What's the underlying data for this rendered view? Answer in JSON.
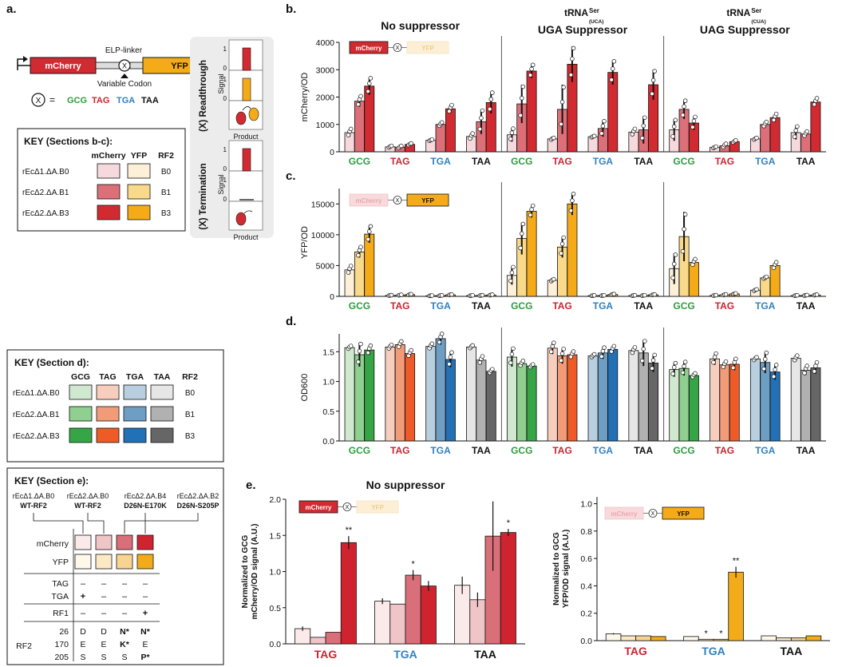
{
  "colors": {
    "mc": [
      "#f6d9dd",
      "#dc6f78",
      "#d22a31"
    ],
    "yf": [
      "#fdf0d8",
      "#f9d98a",
      "#f5ab18"
    ],
    "od": {
      "GCG": [
        "#cfe8cf",
        "#8fcf8f",
        "#36a546"
      ],
      "TAG": [
        "#f7cebd",
        "#f29b79",
        "#ee5b26"
      ],
      "TGA": [
        "#b8cfe0",
        "#6e9ec4",
        "#2270b5"
      ],
      "TAA": [
        "#e6e6e6",
        "#b1b1b1",
        "#666666"
      ]
    },
    "e_mc": [
      "#fbeaea",
      "#efc5c8",
      "#d96f78",
      "#cf2430"
    ],
    "e_yf": [
      "#fef8ea",
      "#fbe9c3",
      "#f8d493",
      "#f3ab1a"
    ],
    "codon": {
      "GCG": "#2a9d3a",
      "TAG": "#c9242f",
      "TGA": "#2f80c0",
      "TAA": "#111111"
    }
  },
  "labels": {
    "a": "a.",
    "b": "b.",
    "c": "c.",
    "d": "d.",
    "e": "e.",
    "elp_linker": "ELP-linker",
    "variable_codon": "Variable Codon",
    "mcherry": "mCherry",
    "yfp": "YFP",
    "x": "X",
    "eq": "=",
    "codons": [
      "GCG",
      "TAG",
      "TGA",
      "TAA"
    ],
    "readthrough": "(X) Readthrough",
    "termination": "(X) Termination",
    "signal": "Signal",
    "product": "Product",
    "one": "1",
    "zero": "0"
  },
  "key_bc": {
    "title": "KEY (Sections b-c):",
    "cols": [
      "mCherry",
      "YFP",
      "RF2"
    ],
    "rows": [
      {
        "strain": "rEcΔ1.ΔA.B0",
        "rf2": "B0"
      },
      {
        "strain": "rEcΔ2.ΔA.B1",
        "rf2": "B1"
      },
      {
        "strain": "rEcΔ2.ΔA.B3",
        "rf2": "B3"
      }
    ]
  },
  "key_d": {
    "title": "KEY (Section d):",
    "cols": [
      "GCG",
      "TAG",
      "TGA",
      "TAA",
      "RF2"
    ],
    "rows": [
      {
        "strain": "rEcΔ1.ΔA.B0",
        "rf2": "B0"
      },
      {
        "strain": "rEcΔ2.ΔA.B1",
        "rf2": "B1"
      },
      {
        "strain": "rEcΔ2.ΔA.B3",
        "rf2": "B3"
      }
    ]
  },
  "key_e": {
    "title": "KEY (Section e):",
    "strains": [
      [
        "rEcΔ1.ΔA.B0",
        "WT-RF2"
      ],
      [
        "rEcΔ2.ΔA.B0",
        "WT-RF2"
      ],
      [
        "rEcΔ2.ΔA.B4",
        "D26N-E170K"
      ],
      [
        "rEcΔ2.ΔA.B2",
        "D26N-S205P"
      ]
    ],
    "row_mc": "mCherry",
    "row_yf": "YFP",
    "tag": "TAG",
    "tga": "TGA",
    "rf1": "RF1",
    "rf2": "RF2",
    "tag_vals": [
      "–",
      "–",
      "–",
      "–"
    ],
    "tga_vals": [
      "+",
      "–",
      "–",
      "–"
    ],
    "rf1_vals": [
      "–",
      "–",
      "–",
      "+"
    ],
    "pos": [
      "26",
      "170",
      "205"
    ],
    "res": [
      [
        "D",
        "D",
        "N*",
        "N*"
      ],
      [
        "E",
        "E",
        "K*",
        "E"
      ],
      [
        "S",
        "S",
        "S",
        "P*"
      ]
    ]
  },
  "chart_data": [
    {
      "type": "bar",
      "id": "b",
      "ylabel": "mCherry/OD",
      "ylim": [
        0,
        4000
      ],
      "yticks": [
        0,
        1000,
        2000,
        3000,
        4000
      ],
      "groups": [
        {
          "title": "No suppressor"
        },
        {
          "title": "tRNA",
          "sup": "Ser",
          "sub": "(UCA)",
          "title2": "UGA Suppressor"
        },
        {
          "title": "tRNA",
          "sup": "Ser",
          "sub": "(CUA)",
          "title2": "UAG Suppressor"
        }
      ],
      "categories": [
        "GCG",
        "TAG",
        "TGA",
        "TAA"
      ],
      "series": [
        {
          "name": "rEcΔ1.ΔA.B0",
          "values": [
            [
              700,
              180,
              420,
              560
            ],
            [
              620,
              470,
              550,
              720
            ],
            [
              800,
              160,
              470,
              700
            ]
          ],
          "err": [
            [
              150,
              40,
              30,
              120
            ],
            [
              250,
              40,
              30,
              130
            ],
            [
              400,
              30,
              40,
              250
            ]
          ]
        },
        {
          "name": "rEcΔ2.ΔA.B1",
          "values": [
            [
              1850,
              170,
              1000,
              1100
            ],
            [
              1750,
              1550,
              850,
              800
            ],
            [
              1550,
              220,
              1000,
              650
            ]
          ],
          "err": [
            [
              200,
              50,
              80,
              450
            ],
            [
              700,
              900,
              300,
              500
            ],
            [
              350,
              80,
              100,
              100
            ]
          ]
        },
        {
          "name": "rEcΔ2.ΔA.B3",
          "values": [
            [
              2400,
              270,
              1570,
              1800
            ],
            [
              2950,
              3200,
              2900,
              2450
            ],
            [
              1050,
              370,
              1250,
              1820
            ]
          ],
          "err": [
            [
              320,
              40,
              150,
              400
            ],
            [
              250,
              650,
              450,
              550
            ],
            [
              250,
              50,
              150,
              150
            ]
          ]
        }
      ]
    },
    {
      "type": "bar",
      "id": "c",
      "ylabel": "YFP/OD",
      "ylim": [
        0,
        17500
      ],
      "yticks": [
        0,
        5000,
        10000,
        15000
      ],
      "categories": [
        "GCG",
        "TAG",
        "TGA",
        "TAA"
      ],
      "series": [
        {
          "name": "rEcΔ1.ΔA.B0",
          "values": [
            [
              4300,
              150,
              100,
              120
            ],
            [
              3400,
              2600,
              120,
              130
            ],
            [
              4500,
              150,
              1000,
              130
            ]
          ],
          "err": [
            [
              700,
              50,
              40,
              50
            ],
            [
              1500,
              200,
              40,
              50
            ],
            [
              2500,
              50,
              150,
              50
            ]
          ]
        },
        {
          "name": "rEcΔ2.ΔA.B1",
          "values": [
            [
              7200,
              200,
              120,
              150
            ],
            [
              9400,
              8000,
              130,
              140
            ],
            [
              9700,
              250,
              3000,
              160
            ]
          ],
          "err": [
            [
              900,
              60,
              40,
              50
            ],
            [
              2600,
              1700,
              40,
              50
            ],
            [
              4000,
              80,
              200,
              50
            ]
          ]
        },
        {
          "name": "rEcΔ2.ΔA.B3",
          "values": [
            [
              10100,
              280,
              250,
              220
            ],
            [
              13800,
              15000,
              300,
              250
            ],
            [
              5500,
              400,
              5000,
              220
            ]
          ],
          "err": [
            [
              1400,
              80,
              60,
              60
            ],
            [
              1000,
              1800,
              80,
              60
            ],
            [
              600,
              80,
              600,
              60
            ]
          ]
        }
      ]
    },
    {
      "type": "bar",
      "id": "d",
      "ylabel": "OD600",
      "ylim": [
        0,
        1.8
      ],
      "yticks": [
        0.0,
        0.5,
        1.0,
        1.5
      ],
      "categories": [
        "GCG",
        "TAG",
        "TGA",
        "TAA"
      ],
      "series": [
        {
          "name": "rEcΔ1.ΔA.B0",
          "values": [
            [
              1.57,
              1.58,
              1.59,
              1.58
            ],
            [
              1.41,
              1.56,
              1.43,
              1.52
            ],
            [
              1.2,
              1.38,
              1.38,
              1.39
            ]
          ],
          "err": [
            [
              0.03,
              0.04,
              0.05,
              0.03
            ],
            [
              0.16,
              0.1,
              0.03,
              0.06
            ],
            [
              0.12,
              0.1,
              0.03,
              0.05
            ]
          ]
        },
        {
          "name": "rEcΔ2.ΔA.B1",
          "values": [
            [
              1.45,
              1.62,
              1.72,
              1.36
            ],
            [
              1.3,
              1.43,
              1.48,
              1.48
            ],
            [
              1.22,
              1.28,
              1.32,
              1.19
            ]
          ],
          "err": [
            [
              0.2,
              0.06,
              0.1,
              0.07
            ],
            [
              0.05,
              0.13,
              0.1,
              0.22
            ],
            [
              0.12,
              0.06,
              0.18,
              0.08
            ]
          ]
        },
        {
          "name": "rEcΔ2.ΔA.B3",
          "values": [
            [
              1.53,
              1.47,
              1.37,
              1.17
            ],
            [
              1.26,
              1.45,
              1.54,
              1.31
            ],
            [
              1.1,
              1.29,
              1.16,
              1.23
            ]
          ],
          "err": [
            [
              0.08,
              0.06,
              0.13,
              0.04
            ],
            [
              0.03,
              0.06,
              0.06,
              0.15
            ],
            [
              0.04,
              0.1,
              0.13,
              0.1
            ]
          ]
        }
      ]
    },
    {
      "type": "bar",
      "id": "e_left",
      "title": "No suppressor",
      "ylabel": "Normalized to GCG",
      "ylabel2": "mCherry/OD signal (A.U.)",
      "ylim": [
        0,
        2.0
      ],
      "yticks": [
        0.0,
        0.5,
        1.0,
        1.5,
        2.0
      ],
      "categories": [
        "TAG",
        "TGA",
        "TAA"
      ],
      "series_names": [
        "rEcΔ1.ΔA.B0",
        "rEcΔ2.ΔA.B0",
        "rEcΔ2.ΔA.B4",
        "rEcΔ2.ΔA.B2"
      ],
      "values": [
        [
          0.21,
          0.09,
          0.16,
          1.4
        ],
        [
          0.59,
          0.55,
          0.95,
          0.8
        ],
        [
          0.81,
          0.61,
          1.49,
          1.54
        ]
      ],
      "err": [
        [
          0.03,
          0.0,
          0.0,
          0.09
        ],
        [
          0.04,
          0.0,
          0.07,
          0.07
        ],
        [
          0.12,
          0.1,
          0.48,
          0.05
        ]
      ],
      "sig": [
        [
          "",
          "",
          "",
          "**"
        ],
        [
          "",
          "",
          "*",
          ""
        ],
        [
          "",
          "",
          "",
          "*"
        ]
      ]
    },
    {
      "type": "bar",
      "id": "e_right",
      "ylabel": "Normalized  to GCG",
      "ylabel2": "YFP/OD signal (A.U.)",
      "ylim": [
        0,
        1.05
      ],
      "yticks": [
        0.0,
        0.2,
        0.4,
        0.6,
        0.8,
        1.0
      ],
      "categories": [
        "TAG",
        "TGA",
        "TAA"
      ],
      "series_names": [
        "rEcΔ1.ΔA.B0",
        "rEcΔ2.ΔA.B0",
        "rEcΔ2.ΔA.B4",
        "rEcΔ2.ΔA.B2"
      ],
      "values": [
        [
          0.05,
          0.035,
          0.035,
          0.03
        ],
        [
          0.03,
          0.01,
          0.01,
          0.5
        ],
        [
          0.035,
          0.02,
          0.02,
          0.035
        ]
      ],
      "err": [
        [
          0.005,
          0,
          0,
          0
        ],
        [
          0,
          0,
          0,
          0.04
        ],
        [
          0,
          0,
          0,
          0
        ]
      ],
      "sig": [
        [
          "",
          "",
          "",
          ""
        ],
        [
          "",
          "*",
          "*",
          "**"
        ],
        [
          "",
          "",
          "",
          ""
        ]
      ]
    }
  ]
}
